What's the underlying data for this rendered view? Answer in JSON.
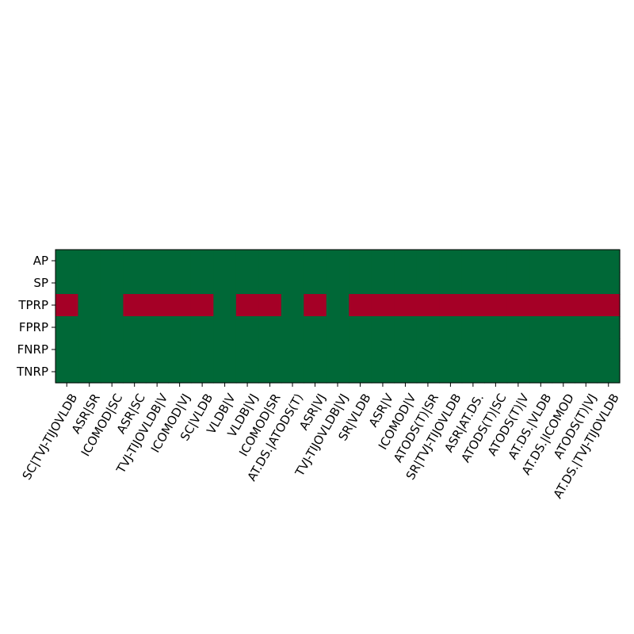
{
  "chart_data": {
    "type": "heatmap",
    "title": "",
    "xlabel": "",
    "ylabel": "",
    "grid": false,
    "colors": {
      "high": "#006837",
      "low": "#a50026"
    },
    "rows": [
      "AP",
      "SP",
      "TPRP",
      "FPRP",
      "FNRP",
      "TNRP"
    ],
    "columns": [
      "SC|TVJ-TIJOVLDB",
      "ASR|SR",
      "ICOMOD|SC",
      "ASR|SC",
      "TVJ-TIJOVLDB|V",
      "ICOMOD|VJ",
      "SC|VLDB",
      "VLDB|V",
      "VLDB|VJ",
      "ICOMOD|SR",
      "AT.DS.|ATODS(T)",
      "ASR|VJ",
      "TVJ-TIJOVLDB|VJ",
      "SR|VLDB",
      "ASR|V",
      "ICOMOD|V",
      "ATODS(T)|SR",
      "SR|TVJ-TIJOVLDB",
      "ASR|AT.DS.",
      "ATODS(T)|SC",
      "ATODS(T)|V",
      "AT.DS.|VLDB",
      "AT.DS.|ICOMOD",
      "ATODS(T)|VJ",
      "AT.DS.|TVJ-TIJOVLDB"
    ],
    "values": [
      [
        1,
        1,
        1,
        1,
        1,
        1,
        1,
        1,
        1,
        1,
        1,
        1,
        1,
        1,
        1,
        1,
        1,
        1,
        1,
        1,
        1,
        1,
        1,
        1,
        1
      ],
      [
        1,
        1,
        1,
        1,
        1,
        1,
        1,
        1,
        1,
        1,
        1,
        1,
        1,
        1,
        1,
        1,
        1,
        1,
        1,
        1,
        1,
        1,
        1,
        1,
        1
      ],
      [
        0,
        1,
        1,
        0,
        0,
        0,
        0,
        1,
        0,
        0,
        1,
        0,
        1,
        0,
        0,
        0,
        0,
        0,
        0,
        0,
        0,
        0,
        0,
        0,
        0
      ],
      [
        1,
        1,
        1,
        1,
        1,
        1,
        1,
        1,
        1,
        1,
        1,
        1,
        1,
        1,
        1,
        1,
        1,
        1,
        1,
        1,
        1,
        1,
        1,
        1,
        1
      ],
      [
        1,
        1,
        1,
        1,
        1,
        1,
        1,
        1,
        1,
        1,
        1,
        1,
        1,
        1,
        1,
        1,
        1,
        1,
        1,
        1,
        1,
        1,
        1,
        1,
        1
      ],
      [
        1,
        1,
        1,
        1,
        1,
        1,
        1,
        1,
        1,
        1,
        1,
        1,
        1,
        1,
        1,
        1,
        1,
        1,
        1,
        1,
        1,
        1,
        1,
        1,
        1
      ]
    ]
  }
}
